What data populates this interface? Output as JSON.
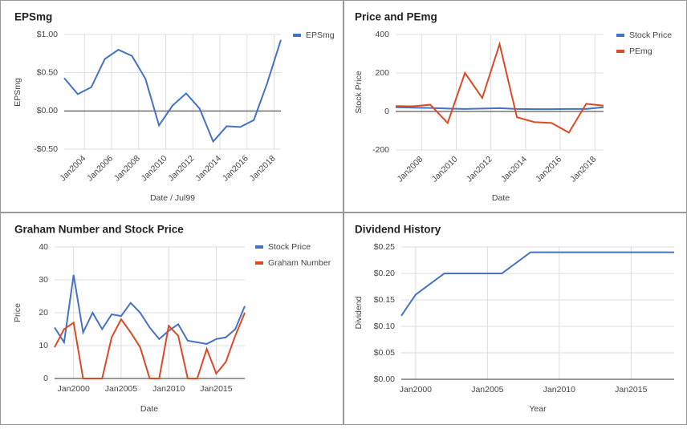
{
  "chart_data": [
    {
      "type": "line",
      "title": "EPSmg",
      "x_label": "Date / Jul99",
      "y_label": "EPSmg",
      "legend": "right",
      "x": [
        2002.5,
        2003.5,
        2004.5,
        2005.5,
        2006.5,
        2007.5,
        2008.5,
        2009.5,
        2010.5,
        2011.5,
        2012.5,
        2013.5,
        2014.5,
        2015.5,
        2016.5,
        2017.5,
        2018.5
      ],
      "series": [
        {
          "name": "EPSmg",
          "color": "#4472c4",
          "values": [
            0.43,
            0.22,
            0.31,
            0.68,
            0.8,
            0.72,
            0.42,
            -0.19,
            0.07,
            0.23,
            0.03,
            -0.4,
            -0.2,
            -0.21,
            -0.12,
            0.37,
            0.93
          ]
        }
      ],
      "xlim": [
        2002.5,
        2018.5
      ],
      "xticks": [
        {
          "value": 2004,
          "label": "Jan2004"
        },
        {
          "value": 2006,
          "label": "Jan2006"
        },
        {
          "value": 2008,
          "label": "Jan2008"
        },
        {
          "value": 2010,
          "label": "Jan2010"
        },
        {
          "value": 2012,
          "label": "Jan2012"
        },
        {
          "value": 2014,
          "label": "Jan2014"
        },
        {
          "value": 2016,
          "label": "Jan2016"
        },
        {
          "value": 2018,
          "label": "Jan2018"
        }
      ],
      "ylim": [
        -0.5,
        1
      ],
      "yticks": [
        {
          "value": 1,
          "label": "$1.00"
        },
        {
          "value": 0.5,
          "label": "$0.50"
        },
        {
          "value": 0,
          "label": "$0.00"
        },
        {
          "value": -0.5,
          "label": "-$0.50"
        }
      ],
      "grid": true
    },
    {
      "type": "line",
      "title": "Price and PEmg",
      "x_label": "Date",
      "y_label": "Stock Price",
      "legend": "right",
      "x": [
        2006.5,
        2007.5,
        2008.5,
        2009.5,
        2010.5,
        2011.5,
        2012.5,
        2013.5,
        2014.5,
        2015.5,
        2016.5,
        2017.5,
        2018.5
      ],
      "series": [
        {
          "name": "Stock Price",
          "color": "#4472c4",
          "values": [
            22,
            20,
            18,
            15,
            13,
            15,
            17,
            13,
            12,
            12,
            13,
            13,
            22
          ]
        },
        {
          "name": "PEmg",
          "color": "#dc4a25",
          "values": [
            28,
            27,
            35,
            -60,
            200,
            70,
            350,
            -30,
            -55,
            -60,
            -110,
            40,
            30
          ]
        }
      ],
      "xlim": [
        2006.5,
        2018.5
      ],
      "xticks": [
        {
          "value": 2008,
          "label": "Jan2008"
        },
        {
          "value": 2010,
          "label": "Jan2010"
        },
        {
          "value": 2012,
          "label": "Jan2012"
        },
        {
          "value": 2014,
          "label": "Jan2014"
        },
        {
          "value": 2016,
          "label": "Jan2016"
        },
        {
          "value": 2018,
          "label": "Jan2018"
        }
      ],
      "ylim": [
        -200,
        400
      ],
      "yticks": [
        400,
        200,
        0,
        -200
      ],
      "grid": true
    },
    {
      "type": "line",
      "title": "Graham Number and Stock Price",
      "x_label": "Date",
      "y_label": "Price",
      "legend": "right",
      "x": [
        1998,
        1999,
        2000,
        2001,
        2002,
        2003,
        2004,
        2005,
        2006,
        2007,
        2008,
        2009,
        2010,
        2011,
        2012,
        2013,
        2014,
        2015,
        2016,
        2017,
        2018
      ],
      "series": [
        {
          "name": "Stock Price",
          "color": "#4472c4",
          "values": [
            15.5,
            11,
            31.5,
            14,
            20,
            15,
            19.5,
            19,
            23,
            20,
            15.5,
            12,
            14.5,
            16.5,
            11.5,
            11,
            10.5,
            12,
            12.5,
            15,
            22
          ]
        },
        {
          "name": "Graham Number",
          "color": "#dc4a25",
          "values": [
            9.5,
            15,
            17,
            0,
            0,
            0,
            12.5,
            18,
            14,
            9.5,
            0,
            0,
            16,
            13,
            0,
            0,
            9,
            1.5,
            5,
            13,
            20
          ]
        }
      ],
      "xlim": [
        1998,
        2018
      ],
      "xticks": [
        {
          "value": 2000,
          "label": "Jan2000"
        },
        {
          "value": 2005,
          "label": "Jan2005"
        },
        {
          "value": 2010,
          "label": "Jan2010"
        },
        {
          "value": 2015,
          "label": "Jan2015"
        }
      ],
      "ylim": [
        0,
        40
      ],
      "yticks": [
        0,
        10,
        20,
        30,
        40
      ],
      "grid": true
    },
    {
      "type": "line",
      "title": "Dividend History",
      "x_label": "Year",
      "y_label": "Dividend",
      "x": [
        1999,
        2000,
        2001,
        2002,
        2003,
        2004,
        2005,
        2006,
        2007,
        2008,
        2009,
        2010,
        2011,
        2012,
        2013,
        2014,
        2015,
        2016,
        2017,
        2018
      ],
      "values": [
        0.12,
        0.16,
        0.18,
        0.2,
        0.2,
        0.2,
        0.2,
        0.2,
        0.22,
        0.24,
        0.24,
        0.24,
        0.24,
        0.24,
        0.24,
        0.24,
        0.24,
        0.24,
        0.24,
        0.24
      ],
      "color": "#4472c4",
      "xlim": [
        1999,
        2018
      ],
      "xticks": [
        {
          "value": 2000,
          "label": "Jan2000"
        },
        {
          "value": 2005,
          "label": "Jan2005"
        },
        {
          "value": 2010,
          "label": "Jan2010"
        },
        {
          "value": 2015,
          "label": "Jan2015"
        }
      ],
      "ylim": [
        0,
        0.25
      ],
      "yticks": [
        {
          "value": 0.25,
          "label": "$0.25"
        },
        {
          "value": 0.2,
          "label": "$0.20"
        },
        {
          "value": 0.15,
          "label": "$0.15"
        },
        {
          "value": 0.1,
          "label": "$0.10"
        },
        {
          "value": 0.05,
          "label": "$0.05"
        },
        {
          "value": 0,
          "label": "$0.00"
        }
      ],
      "grid": true
    }
  ]
}
